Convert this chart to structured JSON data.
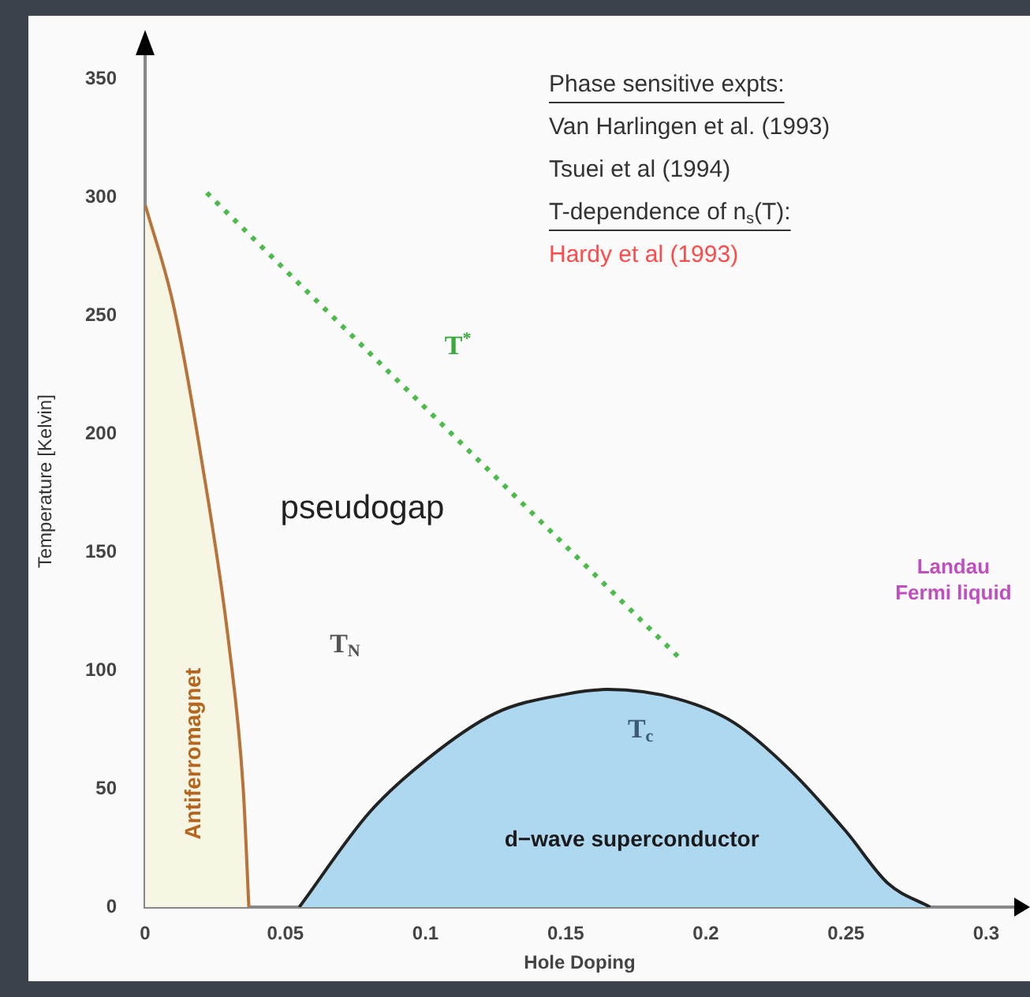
{
  "chart_data": {
    "type": "area",
    "xlabel": "Hole Doping",
    "ylabel": "Temperature [Kelvin]",
    "xlim": [
      0,
      0.31
    ],
    "ylim": [
      0,
      360
    ],
    "xticks": [
      0,
      0.05,
      0.1,
      0.15,
      0.2,
      0.25,
      0.3
    ],
    "yticks": [
      0,
      50,
      100,
      150,
      200,
      250,
      300,
      350
    ],
    "grid": false,
    "legend": false,
    "marker": "none",
    "series": [
      {
        "color": "#f7f5e4",
        "x": [
          0,
          0.01,
          0.02,
          0.03,
          0.035,
          0.037
        ],
        "values": [
          297,
          255,
          190,
          110,
          50,
          0
        ]
      },
      {
        "color": "#aed8f0",
        "x": [
          0.055,
          0.08,
          0.1,
          0.125,
          0.15,
          0.165,
          0.19,
          0.21,
          0.23,
          0.25,
          0.265,
          0.28
        ],
        "values": [
          0,
          40,
          62,
          82,
          90,
          92,
          88,
          78,
          58,
          32,
          10,
          0
        ]
      },
      {
        "type": "line",
        "color": "#4cbb4c",
        "line_style": "dotted",
        "x": [
          0.022,
          0.19
        ],
        "values": [
          302,
          106
        ]
      }
    ],
    "annotations": [
      "Phase sensitive expts:",
      "Van Harlingen et al. (1993)",
      "Tsuei et al (1994)",
      "T-dependence of n$_{s}$(T):",
      "Hardy et al (1993)",
      "pseudogap",
      "Antiferromagnet",
      "T$_{N}$",
      "T$^{*}$",
      "T$_{c}$",
      "d−wave superconductor",
      "Landau\nFermi liquid"
    ]
  }
}
